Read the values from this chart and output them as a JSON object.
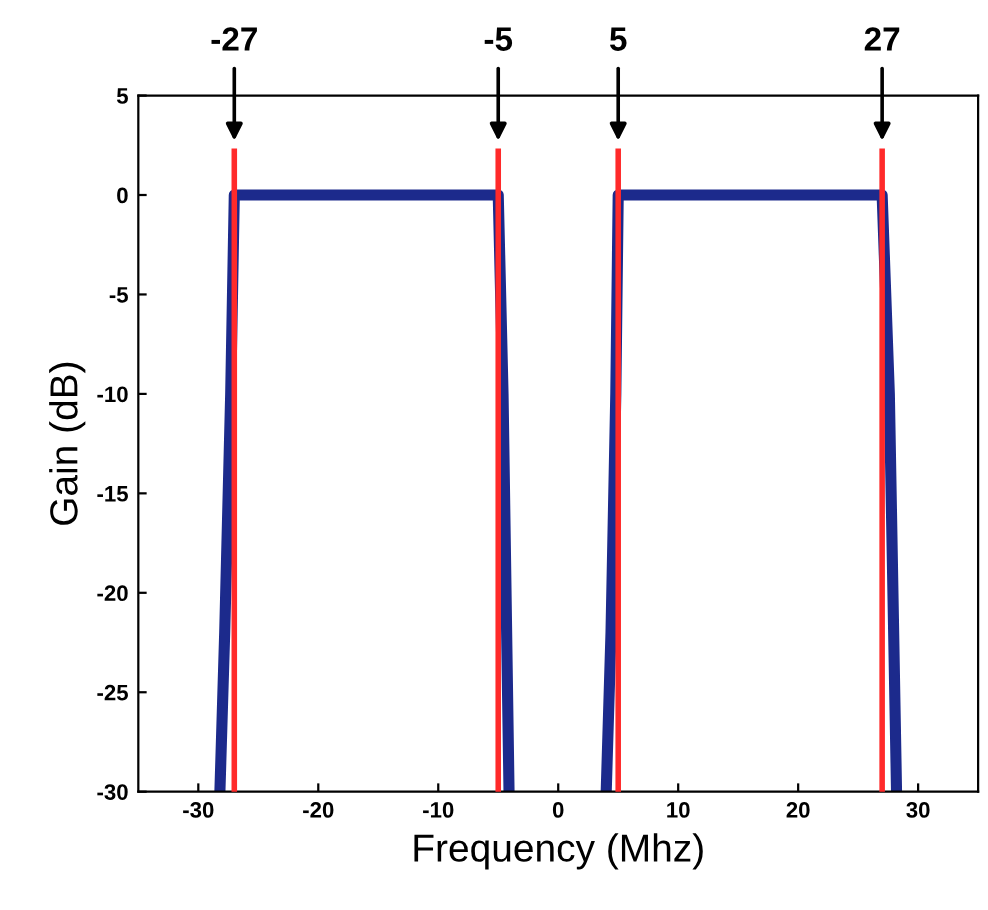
{
  "chart_data": {
    "type": "line",
    "xlabel": "Frequency (Mhz)",
    "ylabel": "Gain (dB)",
    "xlim": [
      -35,
      35
    ],
    "ylim": [
      -30,
      5
    ],
    "xticks": [
      -30,
      -20,
      -10,
      0,
      10,
      20,
      30
    ],
    "yticks": [
      -30,
      -25,
      -20,
      -15,
      -10,
      -5,
      0,
      5
    ],
    "grid": false,
    "marker": "none",
    "line_style": "solid",
    "series": [
      {
        "color": "#1c2a8c",
        "x": [
          -28.2,
          -27.8,
          -27.3,
          -27,
          -5,
          -4.6,
          -4.1
        ],
        "values": [
          -30,
          -22,
          -10,
          0,
          0,
          -10,
          -30
        ]
      },
      {
        "color": "#1c2a8c",
        "x": [
          4,
          4.4,
          4.8,
          5,
          27,
          27.6,
          28.2
        ],
        "values": [
          -30,
          -22,
          -10,
          0,
          0,
          -10,
          -30
        ]
      }
    ],
    "ref_lines": [
      {
        "axis": "x",
        "value": -27,
        "label": "-27",
        "color": "#ff2a2a",
        "line_style": "solid"
      },
      {
        "axis": "x",
        "value": -5,
        "label": "-5",
        "color": "#ff2a2a",
        "line_style": "solid"
      },
      {
        "axis": "x",
        "value": 5,
        "label": "5",
        "color": "#ff2a2a",
        "line_style": "solid"
      },
      {
        "axis": "x",
        "value": 27,
        "label": "27",
        "color": "#ff2a2a",
        "line_style": "solid"
      }
    ]
  }
}
